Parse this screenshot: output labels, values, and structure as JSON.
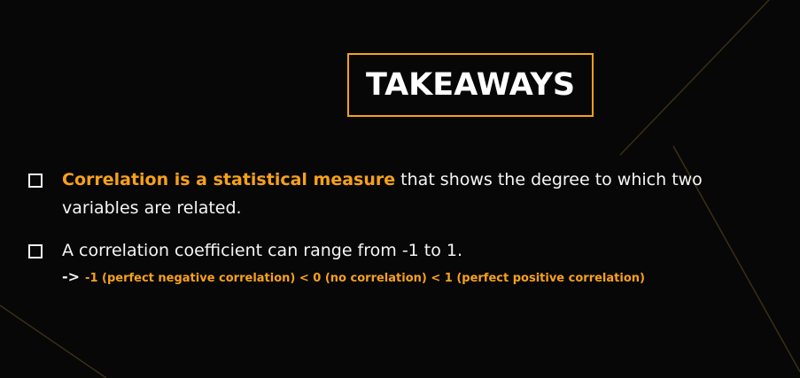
{
  "slide": {
    "title": "TAKEAWAYS",
    "accent_color": "#f7a11a",
    "background_color": "#070707",
    "bullets": [
      {
        "highlight": "Correlation is a statistical measure",
        "text": " that shows the degree to which two variables are related."
      },
      {
        "text": "A correlation coefficient can range from -1 to 1.",
        "arrow": "->",
        "detail": "-1 (perfect negative correlation) < 0 (no correlation) < 1 (perfect positive correlation)"
      }
    ]
  }
}
